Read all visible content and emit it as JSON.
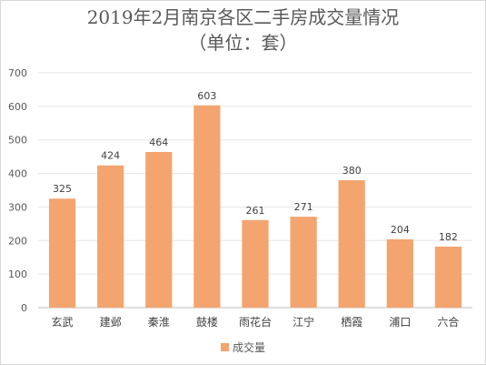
{
  "chart_data": {
    "type": "bar",
    "title": "2019年2月南京各区二手房成交量情况",
    "subtitle": "（单位：套）",
    "categories": [
      "玄武",
      "建邺",
      "秦淮",
      "鼓楼",
      "雨花台",
      "江宁",
      "栖霞",
      "浦口",
      "六合"
    ],
    "series": [
      {
        "name": "成交量",
        "values": [
          325,
          424,
          464,
          603,
          261,
          271,
          380,
          204,
          182
        ],
        "color": "#f4a46f"
      }
    ],
    "ylim": [
      0,
      700
    ],
    "yticks": [
      0,
      100,
      200,
      300,
      400,
      500,
      600,
      700
    ],
    "grid": true,
    "legend": "bottom"
  }
}
